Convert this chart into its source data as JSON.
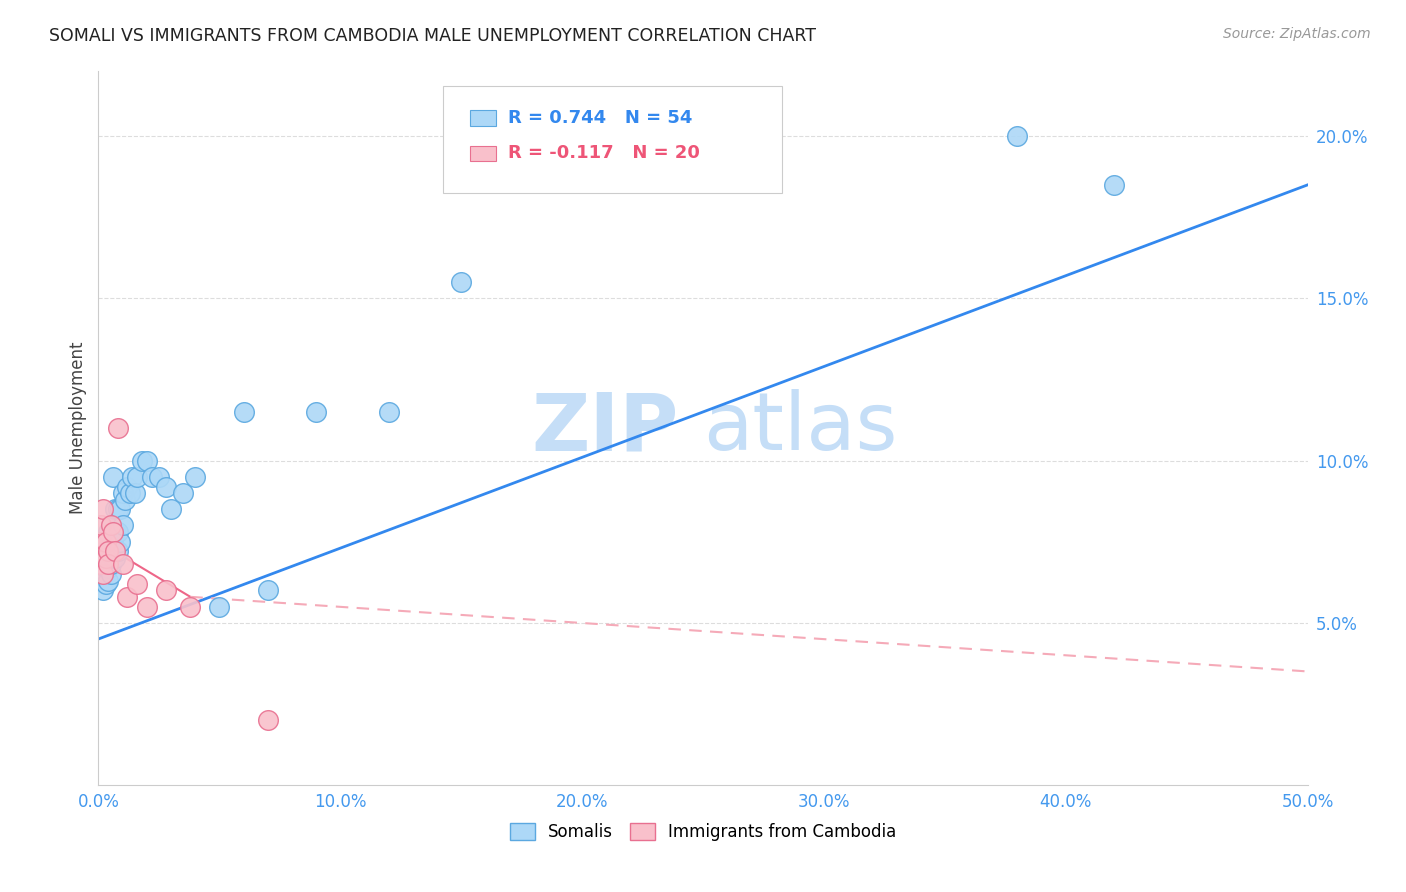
{
  "title": "SOMALI VS IMMIGRANTS FROM CAMBODIA MALE UNEMPLOYMENT CORRELATION CHART",
  "source": "Source: ZipAtlas.com",
  "ylabel": "Male Unemployment",
  "xlim": [
    0.0,
    0.5
  ],
  "ylim": [
    0.0,
    0.22
  ],
  "xticks": [
    0.0,
    0.1,
    0.2,
    0.3,
    0.4,
    0.5
  ],
  "xticklabels": [
    "0.0%",
    "10.0%",
    "20.0%",
    "30.0%",
    "40.0%",
    "50.0%"
  ],
  "yticks": [
    0.05,
    0.1,
    0.15,
    0.2
  ],
  "yticklabels": [
    "5.0%",
    "10.0%",
    "15.0%",
    "20.0%"
  ],
  "somali_R": 0.744,
  "somali_N": 54,
  "cambodia_R": -0.117,
  "cambodia_N": 20,
  "somali_color": "#ADD8F7",
  "somali_edge_color": "#5BA8E0",
  "cambodia_color": "#F9C0CB",
  "cambodia_edge_color": "#E87090",
  "trend_somali_color": "#3388EE",
  "trend_cambodia_color": "#EE6688",
  "trend_cambodia_dash_color": "#F5AAB8",
  "watermark_zip": "ZIP",
  "watermark_atlas": "atlas",
  "watermark_color": "#D8EEFF",
  "somali_x": [
    0.001,
    0.001,
    0.001,
    0.002,
    0.002,
    0.002,
    0.002,
    0.003,
    0.003,
    0.003,
    0.003,
    0.004,
    0.004,
    0.004,
    0.004,
    0.005,
    0.005,
    0.005,
    0.005,
    0.006,
    0.006,
    0.006,
    0.007,
    0.007,
    0.007,
    0.008,
    0.008,
    0.008,
    0.009,
    0.009,
    0.01,
    0.01,
    0.011,
    0.012,
    0.013,
    0.014,
    0.015,
    0.016,
    0.018,
    0.02,
    0.022,
    0.025,
    0.028,
    0.03,
    0.035,
    0.04,
    0.05,
    0.06,
    0.07,
    0.09,
    0.12,
    0.15,
    0.38,
    0.42
  ],
  "somali_y": [
    0.065,
    0.07,
    0.075,
    0.06,
    0.065,
    0.068,
    0.072,
    0.062,
    0.067,
    0.07,
    0.075,
    0.063,
    0.067,
    0.072,
    0.078,
    0.065,
    0.068,
    0.073,
    0.08,
    0.07,
    0.075,
    0.095,
    0.07,
    0.078,
    0.085,
    0.072,
    0.078,
    0.085,
    0.075,
    0.085,
    0.08,
    0.09,
    0.088,
    0.092,
    0.09,
    0.095,
    0.09,
    0.095,
    0.1,
    0.1,
    0.095,
    0.095,
    0.092,
    0.085,
    0.09,
    0.095,
    0.055,
    0.115,
    0.06,
    0.115,
    0.115,
    0.155,
    0.2,
    0.185
  ],
  "cambodia_x": [
    0.001,
    0.001,
    0.001,
    0.002,
    0.002,
    0.003,
    0.003,
    0.004,
    0.004,
    0.005,
    0.006,
    0.007,
    0.008,
    0.01,
    0.012,
    0.016,
    0.02,
    0.028,
    0.038,
    0.07
  ],
  "cambodia_y": [
    0.068,
    0.075,
    0.08,
    0.065,
    0.085,
    0.07,
    0.075,
    0.072,
    0.068,
    0.08,
    0.078,
    0.072,
    0.11,
    0.068,
    0.058,
    0.062,
    0.055,
    0.06,
    0.055,
    0.02
  ],
  "trend_somali_x0": 0.0,
  "trend_somali_y0": 0.045,
  "trend_somali_x1": 0.5,
  "trend_somali_y1": 0.185,
  "trend_cambodia_solid_x0": 0.0,
  "trend_cambodia_solid_y0": 0.075,
  "trend_cambodia_solid_x1": 0.038,
  "trend_cambodia_solid_y1": 0.058,
  "trend_cambodia_dash_x0": 0.038,
  "trend_cambodia_dash_y0": 0.058,
  "trend_cambodia_dash_x1": 0.5,
  "trend_cambodia_dash_y1": 0.035
}
